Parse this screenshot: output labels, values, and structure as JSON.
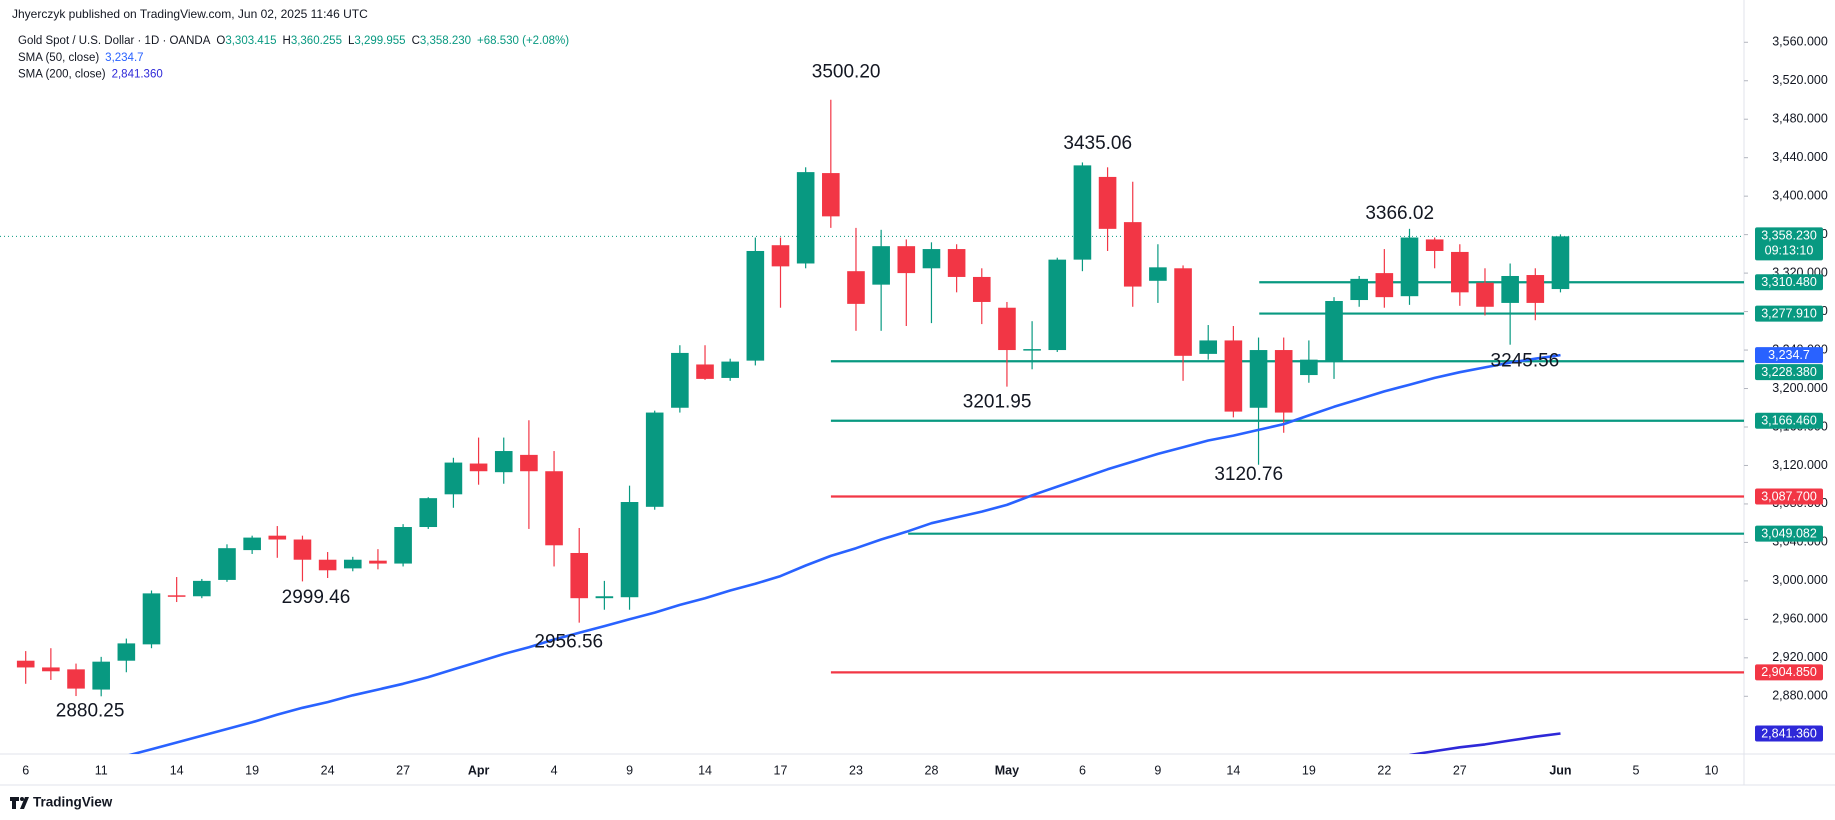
{
  "header": {
    "published": "Jhyerczyk published on TradingView.com, Jun 02, 2025 11:46 UTC"
  },
  "footer": {
    "brand": "TradingView"
  },
  "chart_data": {
    "type": "candlestick",
    "title": "Gold Spot / U.S. Dollar · 1D · OANDA",
    "ohlc_legend": [
      [
        "O",
        "3,303.415"
      ],
      [
        "H",
        "3,360.255"
      ],
      [
        "L",
        "3,299.955"
      ],
      [
        "C",
        "3,358.230"
      ]
    ],
    "change": "+68.530 (+2.08%)",
    "categories": [
      "6",
      null,
      null,
      "11",
      null,
      null,
      "14",
      null,
      null,
      "19",
      null,
      null,
      "24",
      null,
      null,
      "27",
      null,
      null,
      "Apr",
      null,
      null,
      "4",
      null,
      null,
      "9",
      null,
      null,
      "14",
      null,
      null,
      "17",
      null,
      null,
      "23",
      null,
      null,
      "28",
      null,
      null,
      "May",
      null,
      null,
      "6",
      null,
      null,
      "9",
      null,
      null,
      "14",
      null,
      null,
      "19",
      null,
      null,
      "22",
      null,
      null,
      "27",
      null,
      null,
      null,
      "Jun"
    ],
    "future_categories": [
      null,
      null,
      "5",
      null,
      null,
      "10"
    ],
    "open": [
      2917,
      2910,
      2908,
      2887,
      2917,
      2934,
      2985,
      2984,
      3001,
      3032,
      3047,
      3043,
      3022,
      3013,
      3021,
      3018,
      3056,
      3090,
      3122,
      3113,
      3131,
      3114,
      3029,
      2982,
      2983,
      3077,
      3180,
      3225,
      3211,
      3229,
      3349,
      3330,
      3424,
      3322,
      3308,
      3348,
      3325,
      3345,
      3316,
      3284,
      3240,
      3240,
      3334,
      3420,
      3373,
      3312,
      3325,
      3236,
      3250,
      3180,
      3240,
      3214,
      3228,
      3292,
      3320,
      3296,
      3355,
      3342,
      3310,
      3289,
      3318,
      3303.415
    ],
    "high": [
      2927,
      2930,
      2914,
      2921,
      2940,
      2990,
      3004,
      3002,
      3038,
      3047,
      3057,
      3047,
      3030,
      3025,
      3033,
      3059,
      3087,
      3128,
      3149,
      3149,
      3167,
      3135,
      3055,
      3000,
      3099,
      3177,
      3245,
      3245,
      3231,
      3357,
      3357,
      3430,
      3500.2,
      3367,
      3365,
      3355,
      3352,
      3350,
      3325,
      3290,
      3270,
      3336,
      3435.06,
      3430,
      3415,
      3350,
      3328,
      3266,
      3265,
      3253,
      3253,
      3250,
      3295,
      3317,
      3345,
      3366.02,
      3357,
      3350,
      3325,
      3330,
      3325,
      3360.255
    ],
    "low": [
      2893,
      2897,
      2880.25,
      2880,
      2905,
      2930,
      2978,
      2982,
      2999,
      3028,
      3024,
      2999.46,
      3003,
      3010,
      3012,
      3015,
      3054,
      3076,
      3100,
      3101,
      3054,
      3015,
      2956.56,
      2970,
      2970,
      3074,
      3175,
      3209,
      3208,
      3224,
      3284,
      3325,
      3367,
      3260,
      3260,
      3265,
      3268,
      3300,
      3267,
      3201.95,
      3220,
      3238,
      3322,
      3343,
      3285,
      3289,
      3208,
      3230,
      3170,
      3120.76,
      3154,
      3206,
      3210,
      3285,
      3284,
      3287,
      3325,
      3286,
      3276,
      3245.56,
      3271,
      3299.955
    ],
    "close": [
      2910,
      2906,
      2888,
      2916,
      2935,
      2987,
      2984,
      3000,
      3034,
      3045,
      3043,
      3022,
      3011,
      3022,
      3018,
      3056,
      3086,
      3123,
      3114,
      3135,
      3114,
      3037,
      2982,
      2984,
      3082,
      3175,
      3237,
      3210,
      3228,
      3343,
      3327,
      3425,
      3379,
      3288,
      3348,
      3320,
      3345,
      3316,
      3290,
      3240,
      3241,
      3334,
      3432,
      3366,
      3306,
      3326,
      3234,
      3250,
      3176,
      3240,
      3175,
      3230,
      3291,
      3314,
      3295,
      3357,
      3343,
      3300,
      3285,
      3317,
      3289,
      3358.23
    ],
    "up_color": "#089981",
    "down_color": "#f23645",
    "series": [
      {
        "name": "SMA (50, close)",
        "color": "#2962ff",
        "value_label": "3,234.7",
        "values": [
          null,
          null,
          null,
          null,
          2818,
          2825,
          2832,
          2839,
          2846,
          2853,
          2861,
          2868,
          2874,
          2881,
          2887,
          2893,
          2900,
          2908,
          2916,
          2924,
          2931,
          2939,
          2946,
          2953,
          2960,
          2967,
          2975,
          2982,
          2990,
          2997,
          3005,
          3016,
          3026,
          3034,
          3043,
          3051,
          3060,
          3066,
          3072,
          3079,
          3089,
          3098,
          3107,
          3116,
          3124,
          3132,
          3139,
          3146,
          3151,
          3157,
          3163,
          3172,
          3181,
          3189,
          3197,
          3204,
          3211,
          3217,
          3222,
          3227,
          3231,
          3234.7
        ]
      },
      {
        "name": "SMA (200, close)",
        "color": "#2e28d8",
        "value_label": "2,841.360",
        "values": [
          null,
          null,
          null,
          null,
          null,
          null,
          null,
          null,
          null,
          null,
          null,
          null,
          null,
          null,
          null,
          null,
          null,
          null,
          null,
          null,
          null,
          null,
          null,
          null,
          null,
          null,
          null,
          null,
          null,
          null,
          null,
          null,
          null,
          null,
          null,
          null,
          null,
          null,
          null,
          null,
          null,
          null,
          null,
          null,
          null,
          null,
          null,
          null,
          null,
          null,
          null,
          null,
          null,
          null,
          null,
          2819,
          2823,
          2827,
          2830,
          2834,
          2838,
          2841.36
        ]
      }
    ],
    "levels": [
      {
        "value": 3310.48,
        "label": "3,310.480",
        "color": "#089981"
      },
      {
        "value": 3277.91,
        "label": "3,277.910",
        "color": "#089981"
      },
      {
        "value": 3228.38,
        "label": "3,228.380",
        "color": "#089981"
      },
      {
        "value": 3166.46,
        "label": "3,166.460",
        "color": "#089981"
      },
      {
        "value": 3087.7,
        "label": "3,087.700",
        "color": "#f23645"
      },
      {
        "value": 3049.082,
        "label": "3,049.082",
        "color": "#089981"
      },
      {
        "value": 2904.85,
        "label": "2,904.850",
        "color": "#f23645"
      }
    ],
    "last_price": {
      "value": 3358.23,
      "label": "3,358.230",
      "countdown": "09:13:10",
      "color": "#089981"
    },
    "annotations": [
      "3500.20",
      "3435.06",
      "3366.02",
      "3201.95",
      "2999.46",
      "2956.56",
      "2880.25",
      "3120.76",
      "3245.56"
    ],
    "ylim": [
      2820,
      3579
    ],
    "yticks": [
      {
        "value": 2880,
        "label": "2,880.000"
      },
      {
        "value": 2920,
        "label": "2,920.000"
      },
      {
        "value": 2960,
        "label": "2,960.000"
      },
      {
        "value": 3000,
        "label": "3,000.000"
      },
      {
        "value": 3040,
        "label": "3,040.000"
      },
      {
        "value": 3080,
        "label": "3,080.000"
      },
      {
        "value": 3120,
        "label": "3,120.000"
      },
      {
        "value": 3160,
        "label": "3,160.000"
      },
      {
        "value": 3200,
        "label": "3,200.000"
      },
      {
        "value": 3240,
        "label": "3,240.000"
      },
      {
        "value": 3280,
        "label": "3,280.000"
      },
      {
        "value": 3320,
        "label": "3,320.000"
      },
      {
        "value": 3360,
        "label": "3,360.000"
      },
      {
        "value": 3400,
        "label": "3,400.000"
      },
      {
        "value": 3440,
        "label": "3,440.000"
      },
      {
        "value": 3480,
        "label": "3,480.000"
      },
      {
        "value": 3520,
        "label": "3,520.000"
      },
      {
        "value": 3560,
        "label": "3,560.000"
      }
    ],
    "grid": false
  }
}
